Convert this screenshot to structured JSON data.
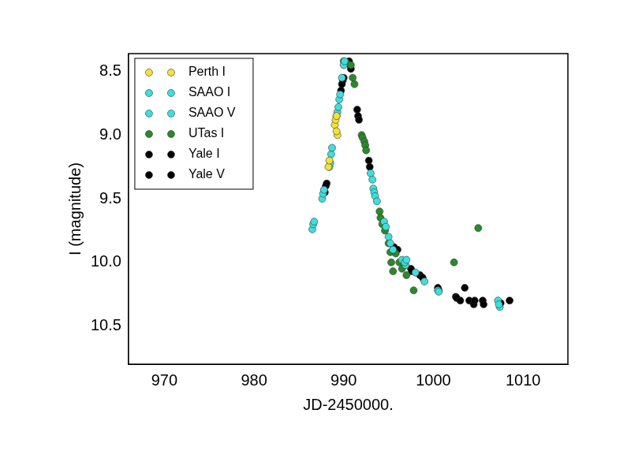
{
  "chart_data": {
    "type": "scatter",
    "x_label": "JD-2450000.",
    "y_label": "I (magnitude)",
    "xlim": [
      966,
      1015
    ],
    "xticks": [
      970,
      980,
      990,
      1000,
      1010
    ],
    "ylim": [
      8.36,
      10.8
    ],
    "yticks": [
      8.5,
      {
        "value": 9,
        "label": "9.0"
      },
      9.5,
      {
        "value": 10,
        "label": "10.0"
      },
      10.5
    ],
    "reverse_y": true,
    "grid": false,
    "legend": "top-left",
    "marker": "circle",
    "series": [
      {
        "name": "Perth I",
        "color": "#f2e23a",
        "x": [
          988.3,
          988.4,
          989.0,
          989.1,
          989.2,
          989.3,
          989.2
        ],
        "values": [
          9.25,
          9.2,
          8.92,
          8.88,
          8.85,
          9.0,
          8.97
        ]
      },
      {
        "name": "SAAO I",
        "color": "#3fdede",
        "x": [
          986.5,
          986.6,
          986.7,
          987.6,
          987.7,
          987.8,
          988.5,
          988.6,
          988.7,
          989.3,
          989.4,
          989.5,
          989.6,
          989.8,
          990.0,
          990.1,
          993.0,
          993.2,
          993.4,
          993.5,
          993.7,
          994.5,
          994.7,
          995.0,
          995.2,
          995.5,
          996.5,
          996.8,
          997.0,
          998.0,
          999.0,
          1000.5,
          1000.6,
          1007.2,
          1007.3
        ],
        "values": [
          9.74,
          9.7,
          9.68,
          9.5,
          9.46,
          9.43,
          9.22,
          9.15,
          9.1,
          8.82,
          8.78,
          8.72,
          8.68,
          8.55,
          8.45,
          8.42,
          9.3,
          9.35,
          9.45,
          9.48,
          9.52,
          9.68,
          9.72,
          9.8,
          9.85,
          9.9,
          9.98,
          10.0,
          9.98,
          10.08,
          10.15,
          10.22,
          10.23,
          10.3,
          10.33
        ]
      },
      {
        "name": "SAAO V",
        "color": "#3fdede",
        "x": [
          988.4,
          989.2,
          993.3,
          996.9,
          1007.4
        ],
        "values": [
          9.25,
          8.85,
          9.42,
          10.02,
          10.35
        ]
      },
      {
        "name": "UTas I",
        "color": "#2a8a2a",
        "x": [
          990.0,
          990.3,
          990.8,
          991.0,
          991.2,
          992.0,
          992.1,
          992.3,
          992.4,
          992.5,
          994.0,
          994.1,
          994.3,
          994.6,
          995.0,
          995.2,
          995.3,
          995.5,
          995.8,
          996.2,
          996.5,
          997.0,
          997.8,
          1002.3,
          1005.0
        ],
        "values": [
          8.42,
          8.43,
          8.45,
          8.55,
          8.6,
          9.0,
          9.02,
          9.05,
          9.08,
          9.12,
          9.6,
          9.65,
          9.7,
          9.75,
          9.85,
          9.92,
          10.0,
          10.07,
          9.93,
          10.0,
          10.05,
          10.1,
          10.22,
          10.0,
          9.73
        ]
      },
      {
        "name": "Yale I",
        "color": "#000000",
        "x": [
          987.9,
          988.0,
          988.1,
          989.7,
          989.8,
          989.9,
          990.0,
          990.6,
          990.7,
          990.8,
          991.5,
          991.6,
          991.7,
          992.8,
          992.9,
          995.6,
          995.8,
          996.0,
          997.5,
          997.6,
          998.5,
          998.8,
          1000.5,
          1000.6
        ],
        "values": [
          9.45,
          9.4,
          9.38,
          8.65,
          8.6,
          8.57,
          8.55,
          8.42,
          8.45,
          8.48,
          8.8,
          8.85,
          8.88,
          9.2,
          9.25,
          9.88,
          9.9,
          9.9,
          10.05,
          10.07,
          10.1,
          10.12,
          10.2,
          10.22
        ]
      },
      {
        "name": "Yale V",
        "color": "#000000",
        "x": [
          1002.5,
          1002.6,
          1003.0,
          1003.5,
          1004.0,
          1004.5,
          1004.6,
          1005.5,
          1005.6,
          1007.5,
          1008.5
        ],
        "values": [
          10.27,
          10.28,
          10.3,
          10.2,
          10.3,
          10.33,
          10.3,
          10.3,
          10.33,
          10.32,
          10.3
        ]
      }
    ]
  }
}
